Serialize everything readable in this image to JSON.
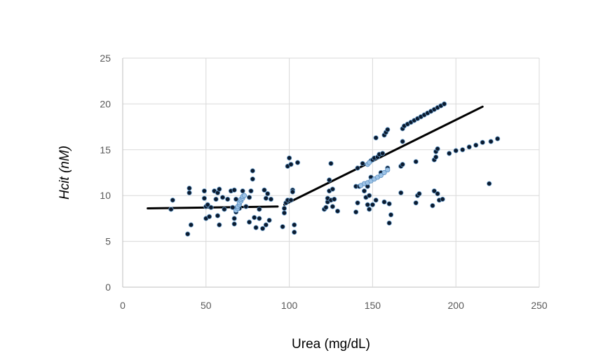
{
  "chart_data": {
    "type": "scatter",
    "xlabel": "Urea (mg/dL)",
    "ylabel": "Hcit (nM)",
    "xlim": [
      0,
      250
    ],
    "ylim": [
      0,
      25
    ],
    "x_ticks": [
      0,
      50,
      100,
      150,
      200,
      250
    ],
    "y_ticks": [
      0,
      5,
      10,
      15,
      20,
      25
    ],
    "grid": true,
    "legend": "none",
    "colors": {
      "point": "#0b1a2e",
      "point_edge": "#6aa0cf",
      "highlight": "#9dc3e6",
      "line": "#000000"
    },
    "trend_lines": [
      {
        "points": [
          [
            15,
            8.6
          ],
          [
            93,
            8.8
          ]
        ]
      },
      {
        "points": [
          [
            97,
            9.0
          ],
          [
            216,
            19.7
          ]
        ]
      }
    ],
    "series": [
      {
        "points": [
          [
            29,
            8.5
          ],
          [
            30,
            9.5
          ],
          [
            39,
            5.8
          ],
          [
            40,
            10.3
          ],
          [
            40,
            10.8
          ],
          [
            41,
            6.8
          ],
          [
            49,
            10.5
          ],
          [
            49,
            9.7
          ],
          [
            50,
            8.8
          ],
          [
            50,
            7.5
          ],
          [
            51,
            9.0
          ],
          [
            52,
            7.7
          ],
          [
            53,
            8.7
          ],
          [
            55,
            10.5
          ],
          [
            56,
            9.6
          ],
          [
            57,
            10.3
          ],
          [
            57,
            7.8
          ],
          [
            58,
            10.7
          ],
          [
            58,
            6.8
          ],
          [
            60,
            9.8
          ],
          [
            61,
            8.5
          ],
          [
            63,
            9.6
          ],
          [
            65,
            10.5
          ],
          [
            66,
            8.7
          ],
          [
            67,
            7.5
          ],
          [
            67,
            6.9
          ],
          [
            67,
            10.6
          ],
          [
            68,
            9.6
          ],
          [
            68,
            8.2
          ],
          [
            70,
            8.6
          ],
          [
            72,
            10.5
          ],
          [
            74,
            8.8
          ],
          [
            76,
            7.1
          ],
          [
            76,
            9.8
          ],
          [
            77,
            10.5
          ],
          [
            78,
            11.8
          ],
          [
            78,
            12.7
          ],
          [
            79,
            7.6
          ],
          [
            80,
            6.5
          ],
          [
            82,
            8.5
          ],
          [
            82,
            7.5
          ],
          [
            84,
            6.4
          ],
          [
            85,
            10.6
          ],
          [
            86,
            6.8
          ],
          [
            86,
            9.7
          ],
          [
            87,
            10.2
          ],
          [
            88,
            7.3
          ],
          [
            89,
            9.6
          ],
          [
            96,
            6.6
          ],
          [
            97,
            8.6
          ],
          [
            97,
            8.1
          ],
          [
            98,
            9.2
          ],
          [
            99,
            9.5
          ],
          [
            99,
            13.2
          ],
          [
            100,
            14.1
          ],
          [
            101,
            9.5
          ],
          [
            101,
            13.4
          ],
          [
            102,
            10.6
          ],
          [
            102,
            10.4
          ],
          [
            103,
            6.0
          ],
          [
            103,
            6.8
          ],
          [
            105,
            13.6
          ],
          [
            121,
            8.5
          ],
          [
            122,
            8.7
          ],
          [
            123,
            9.3
          ],
          [
            123,
            9.7
          ],
          [
            124,
            10.5
          ],
          [
            124,
            11.7
          ],
          [
            125,
            13.5
          ],
          [
            125,
            9.5
          ],
          [
            126,
            10.7
          ],
          [
            126,
            8.8
          ],
          [
            127,
            9.6
          ],
          [
            129,
            8.3
          ],
          [
            140,
            8.2
          ],
          [
            140,
            11.0
          ],
          [
            141,
            9.2
          ],
          [
            141,
            13.0
          ],
          [
            142,
            11.0
          ],
          [
            144,
            13.5
          ],
          [
            145,
            10.5
          ],
          [
            146,
            9.8
          ],
          [
            147,
            9.0
          ],
          [
            147,
            11.0
          ],
          [
            148,
            8.5
          ],
          [
            148,
            10.0
          ],
          [
            149,
            12.0
          ],
          [
            149,
            13.8
          ],
          [
            150,
            13.9
          ],
          [
            150,
            9.0
          ],
          [
            151,
            14.1
          ],
          [
            152,
            16.3
          ],
          [
            152,
            9.5
          ],
          [
            153,
            14.2
          ],
          [
            154,
            14.5
          ],
          [
            155,
            12.5
          ],
          [
            156,
            14.6
          ],
          [
            157,
            16.6
          ],
          [
            157,
            9.3
          ],
          [
            158,
            16.9
          ],
          [
            159,
            13.0
          ],
          [
            159,
            17.2
          ],
          [
            160,
            9.1
          ],
          [
            160,
            7.0
          ],
          [
            161,
            7.9
          ],
          [
            167,
            10.3
          ],
          [
            167,
            13.2
          ],
          [
            168,
            17.3
          ],
          [
            168,
            13.4
          ],
          [
            168,
            15.9
          ],
          [
            169,
            17.6
          ],
          [
            171,
            17.8
          ],
          [
            173,
            18.0
          ],
          [
            175,
            18.2
          ],
          [
            176,
            13.7
          ],
          [
            176,
            9.2
          ],
          [
            177,
            10.0
          ],
          [
            177,
            18.4
          ],
          [
            178,
            10.2
          ],
          [
            179,
            18.6
          ],
          [
            181,
            18.8
          ],
          [
            183,
            19.0
          ],
          [
            185,
            19.2
          ],
          [
            186,
            8.9
          ],
          [
            187,
            19.4
          ],
          [
            187,
            13.9
          ],
          [
            187,
            10.5
          ],
          [
            188,
            14.2
          ],
          [
            188,
            14.8
          ],
          [
            189,
            15.1
          ],
          [
            189,
            10.2
          ],
          [
            189,
            19.6
          ],
          [
            190,
            9.5
          ],
          [
            191,
            19.8
          ],
          [
            192,
            9.6
          ],
          [
            193,
            20.0
          ],
          [
            196,
            14.6
          ],
          [
            200,
            14.9
          ],
          [
            204,
            15.0
          ],
          [
            208,
            15.3
          ],
          [
            212,
            15.5
          ],
          [
            216,
            15.8
          ],
          [
            220,
            11.3
          ],
          [
            221,
            15.9
          ],
          [
            225,
            16.2
          ]
        ]
      },
      {
        "points": [
          [
            68,
            8.4
          ],
          [
            69,
            8.6
          ],
          [
            69,
            8.8
          ],
          [
            70,
            9.0
          ],
          [
            70,
            9.2
          ],
          [
            71,
            9.4
          ],
          [
            71,
            9.6
          ],
          [
            72,
            9.7
          ],
          [
            72,
            9.9
          ],
          [
            73,
            10.0
          ],
          [
            143,
            11.1
          ],
          [
            145,
            11.3
          ],
          [
            147,
            11.4
          ],
          [
            149,
            11.6
          ],
          [
            151,
            11.8
          ],
          [
            153,
            12.0
          ],
          [
            155,
            12.2
          ],
          [
            157,
            12.5
          ],
          [
            159,
            12.8
          ],
          [
            147,
            13.4
          ],
          [
            148,
            13.6
          ]
        ]
      }
    ]
  }
}
